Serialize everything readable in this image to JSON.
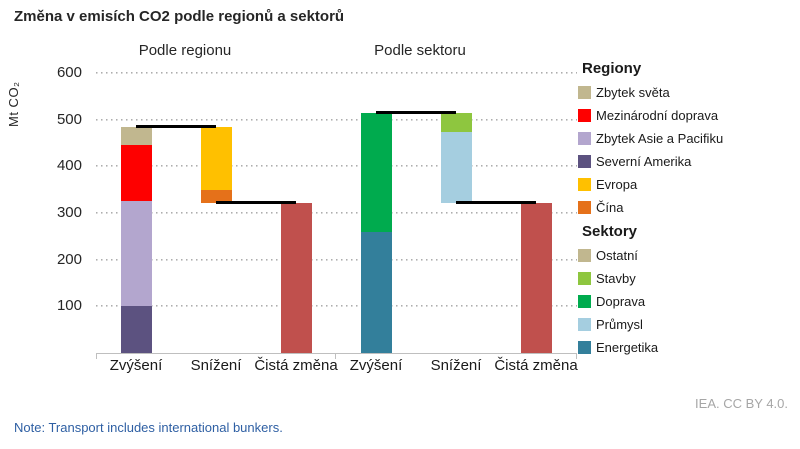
{
  "title": "Změna v emisích CO2 podle regionů a sektorů",
  "footer": {
    "attribution": "IEA. CC BY 4.0.",
    "note": "Note: Transport includes international bunkers."
  },
  "chart_data": {
    "type": "bar",
    "subtype": "stacked-waterfall",
    "ylabel": "Mt CO₂",
    "ylim": [
      0,
      600
    ],
    "yticks": [
      100,
      200,
      300,
      400,
      500,
      600
    ],
    "grid": "dotted-horizontal",
    "unit": "Mt CO2",
    "groups": [
      {
        "label": "Podle regionu",
        "bars": [
          {
            "label": "Zvýšení",
            "base": 0,
            "segments": [
              {
                "name": "Severní Amerika",
                "value": 100,
                "color": "#5c5280"
              },
              {
                "name": "Zbytek Asie a Pacifiku",
                "value": 226,
                "color": "#b3a6ce"
              },
              {
                "name": "Mezinárodní doprava",
                "value": 120,
                "color": "#fe0000"
              },
              {
                "name": "Zbytek světa",
                "value": 38,
                "color": "#c1b78f"
              }
            ]
          },
          {
            "label": "Snížení",
            "base": 322,
            "segments": [
              {
                "name": "Čína",
                "value": 28,
                "color": "#e5711a"
              },
              {
                "name": "Evropa",
                "value": 134,
                "color": "#ffc000"
              }
            ]
          },
          {
            "label": "Čistá změna",
            "base": 0,
            "segments": [
              {
                "name": "Čistá změna",
                "value": 322,
                "color": "#c0504d"
              }
            ]
          }
        ],
        "connectors": [
          {
            "from": 0,
            "to": 1,
            "value": 484
          },
          {
            "from": 1,
            "to": 2,
            "value": 322
          }
        ]
      },
      {
        "label": "Podle sektoru",
        "bars": [
          {
            "label": "Zvýšení",
            "base": 0,
            "segments": [
              {
                "name": "Energetika",
                "value": 260,
                "color": "#337f9b"
              },
              {
                "name": "Doprava",
                "value": 255,
                "color": "#00ab4e"
              }
            ]
          },
          {
            "label": "Snížení",
            "base": 322,
            "segments": [
              {
                "name": "Průmysl",
                "value": 152,
                "color": "#a5cee0"
              },
              {
                "name": "Stavby",
                "value": 41,
                "color": "#8ec63f"
              }
            ]
          },
          {
            "label": "Čistá změna",
            "base": 0,
            "segments": [
              {
                "name": "Čistá změna",
                "value": 322,
                "color": "#c0504d"
              }
            ]
          }
        ],
        "connectors": [
          {
            "from": 0,
            "to": 1,
            "value": 515
          },
          {
            "from": 1,
            "to": 2,
            "value": 322
          }
        ]
      }
    ]
  },
  "legend": {
    "sections": [
      {
        "title": "Regiony",
        "items": [
          {
            "label": "Zbytek světa",
            "color": "#c1b78f"
          },
          {
            "label": "Mezinárodní doprava",
            "color": "#fe0000"
          },
          {
            "label": "Zbytek Asie a Pacifiku",
            "color": "#b3a6ce"
          },
          {
            "label": "Severní Amerika",
            "color": "#5c5280"
          },
          {
            "label": "Evropa",
            "color": "#ffc000"
          },
          {
            "label": "Čína",
            "color": "#e5711a"
          }
        ]
      },
      {
        "title": "Sektory",
        "items": [
          {
            "label": "Ostatní",
            "color": "#c1b78f"
          },
          {
            "label": "Stavby",
            "color": "#8ec63f"
          },
          {
            "label": "Doprava",
            "color": "#00ab4e"
          },
          {
            "label": "Průmysl",
            "color": "#a5cee0"
          },
          {
            "label": "Energetika",
            "color": "#337f9b"
          }
        ]
      }
    ]
  }
}
